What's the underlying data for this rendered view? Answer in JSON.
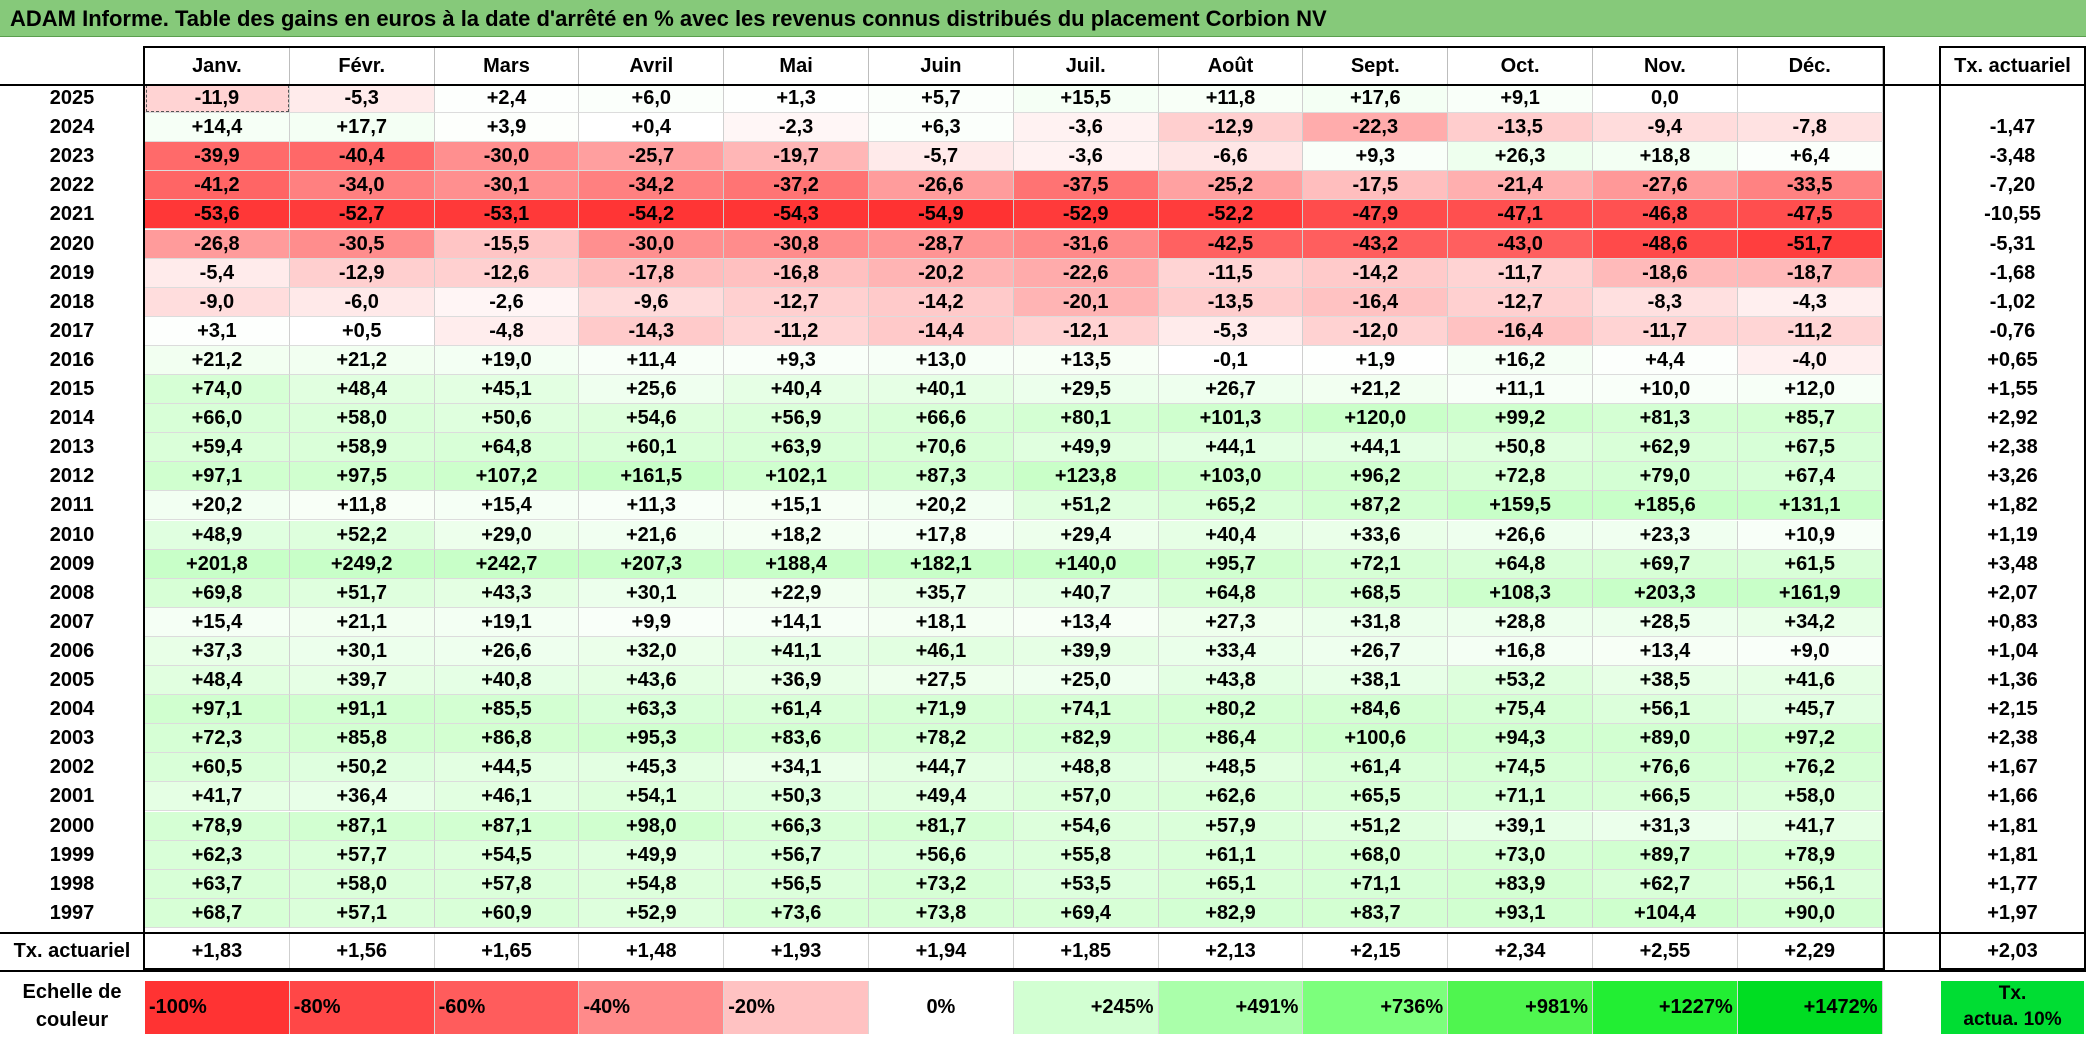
{
  "title": "ADAM Informe. Table des gains en euros à la date d'arrêté en % avec les revenus connus distribués du placement Corbion NV",
  "months": [
    "Janv.",
    "Févr.",
    "Mars",
    "Avril",
    "Mai",
    "Juin",
    "Juil.",
    "Août",
    "Sept.",
    "Oct.",
    "Nov.",
    "Déc."
  ],
  "tx_header": "Tx. actuariel",
  "rows": [
    {
      "year": "2025",
      "values": [
        "-11,9",
        "-5,3",
        "+2,4",
        "+6,0",
        "+1,3",
        "+5,7",
        "+15,5",
        "+11,8",
        "+17,6",
        "+9,1",
        "0,0",
        ""
      ],
      "tx": ""
    },
    {
      "year": "2024",
      "values": [
        "+14,4",
        "+17,7",
        "+3,9",
        "+0,4",
        "-2,3",
        "+6,3",
        "-3,6",
        "-12,9",
        "-22,3",
        "-13,5",
        "-9,4",
        "-7,8"
      ],
      "tx": "-1,47"
    },
    {
      "year": "2023",
      "values": [
        "-39,9",
        "-40,4",
        "-30,0",
        "-25,7",
        "-19,7",
        "-5,7",
        "-3,6",
        "-6,6",
        "+9,3",
        "+26,3",
        "+18,8",
        "+6,4"
      ],
      "tx": "-3,48"
    },
    {
      "year": "2022",
      "values": [
        "-41,2",
        "-34,0",
        "-30,1",
        "-34,2",
        "-37,2",
        "-26,6",
        "-37,5",
        "-25,2",
        "-17,5",
        "-21,4",
        "-27,6",
        "-33,5"
      ],
      "tx": "-7,20"
    },
    {
      "year": "2021",
      "values": [
        "-53,6",
        "-52,7",
        "-53,1",
        "-54,2",
        "-54,3",
        "-54,9",
        "-52,9",
        "-52,2",
        "-47,9",
        "-47,1",
        "-46,8",
        "-47,5"
      ],
      "tx": "-10,55"
    },
    {
      "year": "2020",
      "values": [
        "-26,8",
        "-30,5",
        "-15,5",
        "-30,0",
        "-30,8",
        "-28,7",
        "-31,6",
        "-42,5",
        "-43,2",
        "-43,0",
        "-48,6",
        "-51,7"
      ],
      "tx": "-5,31"
    },
    {
      "year": "2019",
      "values": [
        "-5,4",
        "-12,9",
        "-12,6",
        "-17,8",
        "-16,8",
        "-20,2",
        "-22,6",
        "-11,5",
        "-14,2",
        "-11,7",
        "-18,6",
        "-18,7"
      ],
      "tx": "-1,68"
    },
    {
      "year": "2018",
      "values": [
        "-9,0",
        "-6,0",
        "-2,6",
        "-9,6",
        "-12,7",
        "-14,2",
        "-20,1",
        "-13,5",
        "-16,4",
        "-12,7",
        "-8,3",
        "-4,3"
      ],
      "tx": "-1,02"
    },
    {
      "year": "2017",
      "values": [
        "+3,1",
        "+0,5",
        "-4,8",
        "-14,3",
        "-11,2",
        "-14,4",
        "-12,1",
        "-5,3",
        "-12,0",
        "-16,4",
        "-11,7",
        "-11,2"
      ],
      "tx": "-0,76"
    },
    {
      "year": "2016",
      "values": [
        "+21,2",
        "+21,2",
        "+19,0",
        "+11,4",
        "+9,3",
        "+13,0",
        "+13,5",
        "-0,1",
        "+1,9",
        "+16,2",
        "+4,4",
        "-4,0"
      ],
      "tx": "+0,65"
    },
    {
      "year": "2015",
      "values": [
        "+74,0",
        "+48,4",
        "+45,1",
        "+25,6",
        "+40,4",
        "+40,1",
        "+29,5",
        "+26,7",
        "+21,2",
        "+11,1",
        "+10,0",
        "+12,0"
      ],
      "tx": "+1,55"
    },
    {
      "year": "2014",
      "values": [
        "+66,0",
        "+58,0",
        "+50,6",
        "+54,6",
        "+56,9",
        "+66,6",
        "+80,1",
        "+101,3",
        "+120,0",
        "+99,2",
        "+81,3",
        "+85,7"
      ],
      "tx": "+2,92"
    },
    {
      "year": "2013",
      "values": [
        "+59,4",
        "+58,9",
        "+64,8",
        "+60,1",
        "+63,9",
        "+70,6",
        "+49,9",
        "+44,1",
        "+44,1",
        "+50,8",
        "+62,9",
        "+67,5"
      ],
      "tx": "+2,38"
    },
    {
      "year": "2012",
      "values": [
        "+97,1",
        "+97,5",
        "+107,2",
        "+161,5",
        "+102,1",
        "+87,3",
        "+123,8",
        "+103,0",
        "+96,2",
        "+72,8",
        "+79,0",
        "+67,4"
      ],
      "tx": "+3,26"
    },
    {
      "year": "2011",
      "values": [
        "+20,2",
        "+11,8",
        "+15,4",
        "+11,3",
        "+15,1",
        "+20,2",
        "+51,2",
        "+65,2",
        "+87,2",
        "+159,5",
        "+185,6",
        "+131,1"
      ],
      "tx": "+1,82"
    },
    {
      "year": "2010",
      "values": [
        "+48,9",
        "+52,2",
        "+29,0",
        "+21,6",
        "+18,2",
        "+17,8",
        "+29,4",
        "+40,4",
        "+33,6",
        "+26,6",
        "+23,3",
        "+10,9"
      ],
      "tx": "+1,19"
    },
    {
      "year": "2009",
      "values": [
        "+201,8",
        "+249,2",
        "+242,7",
        "+207,3",
        "+188,4",
        "+182,1",
        "+140,0",
        "+95,7",
        "+72,1",
        "+64,8",
        "+69,7",
        "+61,5"
      ],
      "tx": "+3,48"
    },
    {
      "year": "2008",
      "values": [
        "+69,8",
        "+51,7",
        "+43,3",
        "+30,1",
        "+22,9",
        "+35,7",
        "+40,7",
        "+64,8",
        "+68,5",
        "+108,3",
        "+203,3",
        "+161,9"
      ],
      "tx": "+2,07"
    },
    {
      "year": "2007",
      "values": [
        "+15,4",
        "+21,1",
        "+19,1",
        "+9,9",
        "+14,1",
        "+18,1",
        "+13,4",
        "+27,3",
        "+31,8",
        "+28,8",
        "+28,5",
        "+34,2"
      ],
      "tx": "+0,83"
    },
    {
      "year": "2006",
      "values": [
        "+37,3",
        "+30,1",
        "+26,6",
        "+32,0",
        "+41,1",
        "+46,1",
        "+39,9",
        "+33,4",
        "+26,7",
        "+16,8",
        "+13,4",
        "+9,0"
      ],
      "tx": "+1,04"
    },
    {
      "year": "2005",
      "values": [
        "+48,4",
        "+39,7",
        "+40,8",
        "+43,6",
        "+36,9",
        "+27,5",
        "+25,0",
        "+43,8",
        "+38,1",
        "+53,2",
        "+38,5",
        "+41,6"
      ],
      "tx": "+1,36"
    },
    {
      "year": "2004",
      "values": [
        "+97,1",
        "+91,1",
        "+85,5",
        "+63,3",
        "+61,4",
        "+71,9",
        "+74,1",
        "+80,2",
        "+84,6",
        "+75,4",
        "+56,1",
        "+45,7"
      ],
      "tx": "+2,15"
    },
    {
      "year": "2003",
      "values": [
        "+72,3",
        "+85,8",
        "+86,8",
        "+95,3",
        "+83,6",
        "+78,2",
        "+82,9",
        "+86,4",
        "+100,6",
        "+94,3",
        "+89,0",
        "+97,2"
      ],
      "tx": "+2,38"
    },
    {
      "year": "2002",
      "values": [
        "+60,5",
        "+50,2",
        "+44,5",
        "+45,3",
        "+34,1",
        "+44,7",
        "+48,8",
        "+48,5",
        "+61,4",
        "+74,5",
        "+76,6",
        "+76,2"
      ],
      "tx": "+1,67"
    },
    {
      "year": "2001",
      "values": [
        "+41,7",
        "+36,4",
        "+46,1",
        "+54,1",
        "+50,3",
        "+49,4",
        "+57,0",
        "+62,6",
        "+65,5",
        "+71,1",
        "+66,5",
        "+58,0"
      ],
      "tx": "+1,66"
    },
    {
      "year": "2000",
      "values": [
        "+78,9",
        "+87,1",
        "+87,1",
        "+98,0",
        "+66,3",
        "+81,7",
        "+54,6",
        "+57,9",
        "+51,2",
        "+39,1",
        "+31,3",
        "+41,7"
      ],
      "tx": "+1,81"
    },
    {
      "year": "1999",
      "values": [
        "+62,3",
        "+57,7",
        "+54,5",
        "+49,9",
        "+56,7",
        "+56,6",
        "+55,8",
        "+61,1",
        "+68,0",
        "+73,0",
        "+89,7",
        "+78,9"
      ],
      "tx": "+1,81"
    },
    {
      "year": "1998",
      "values": [
        "+63,7",
        "+58,0",
        "+57,8",
        "+54,8",
        "+56,5",
        "+73,2",
        "+53,5",
        "+65,1",
        "+71,1",
        "+83,9",
        "+62,7",
        "+56,1"
      ],
      "tx": "+1,77"
    },
    {
      "year": "1997",
      "values": [
        "+68,7",
        "+57,1",
        "+60,9",
        "+52,9",
        "+73,6",
        "+73,8",
        "+69,4",
        "+82,9",
        "+83,7",
        "+93,1",
        "+104,4",
        "+90,0"
      ],
      "tx": "+1,97"
    }
  ],
  "summary": {
    "label": "Tx. actuariel",
    "values": [
      "+1,83",
      "+1,56",
      "+1,65",
      "+1,48",
      "+1,93",
      "+1,94",
      "+1,85",
      "+2,13",
      "+2,15",
      "+2,34",
      "+2,55",
      "+2,29"
    ],
    "tx": "+2,03"
  },
  "scale": {
    "label_line1": "Echelle de",
    "label_line2": "couleur",
    "items": [
      {
        "label": "-100%",
        "color": "#ff3333",
        "align": "left"
      },
      {
        "label": "-80%",
        "color": "#ff4747",
        "align": "left"
      },
      {
        "label": "-60%",
        "color": "#ff5c5c",
        "align": "left"
      },
      {
        "label": "-40%",
        "color": "#ff8a8a",
        "align": "left"
      },
      {
        "label": "-20%",
        "color": "#ffc2c2",
        "align": "left"
      },
      {
        "label": "0%",
        "color": "#ffffff",
        "align": "center"
      },
      {
        "label": "+245%",
        "color": "#d2ffd2",
        "align": "right"
      },
      {
        "label": "+491%",
        "color": "#aaffaa",
        "align": "right"
      },
      {
        "label": "+736%",
        "color": "#7cff7c",
        "align": "right"
      },
      {
        "label": "+981%",
        "color": "#4ff54f",
        "align": "right"
      },
      {
        "label": "+1227%",
        "color": "#22ee33",
        "align": "right"
      },
      {
        "label": "+1472%",
        "color": "#00dd22",
        "align": "right"
      }
    ],
    "tx_line1": "Tx.",
    "tx_line2": "actua. 10%",
    "tx_color": "#00dd33"
  }
}
